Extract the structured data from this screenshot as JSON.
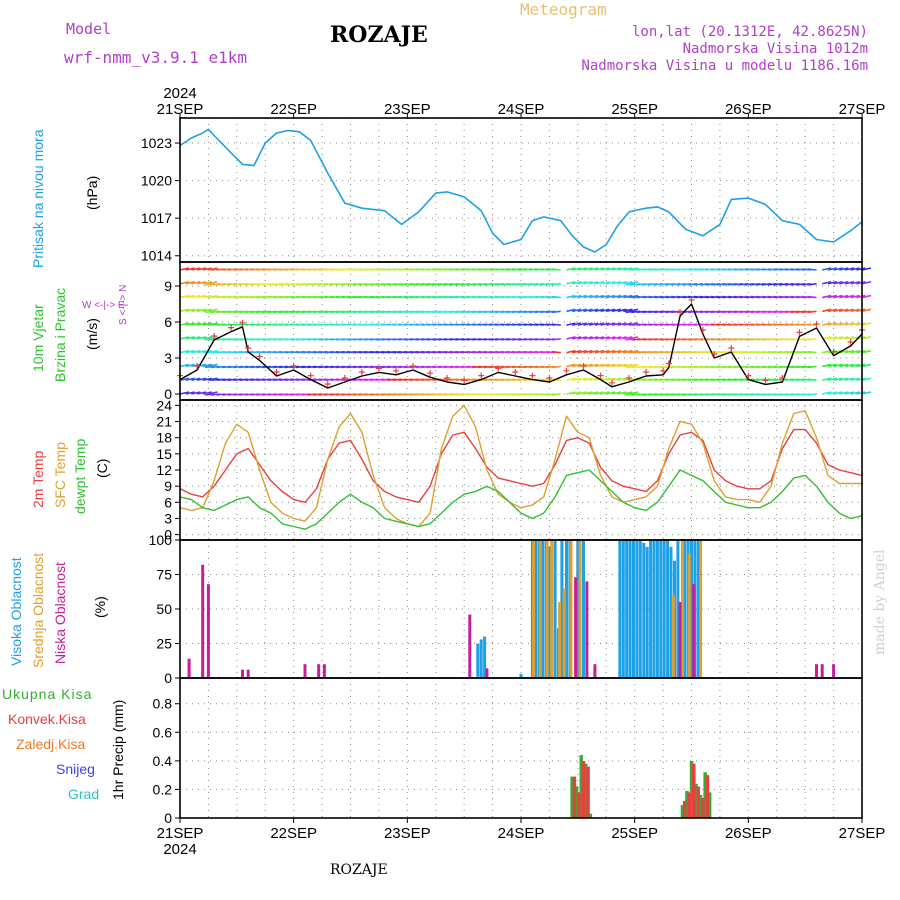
{
  "header": {
    "model_label": "Model",
    "model_name": "wrf-nmm_v3.9.1 e1km",
    "title": "ROZAJE",
    "meteogram_label": "Meteogram",
    "lonlat": "lon,lat (20.1312E, 42.8625N)",
    "altitude": "Nadmorska Visina 1012m",
    "model_altitude": "Nadmorska Visina u modelu 1186.16m"
  },
  "footer": {
    "station": "ROZAJE",
    "credit": "made by Angel"
  },
  "colors": {
    "pressure": "#1ea0e6",
    "temp2m": "#e84040",
    "sfc": "#e0a030",
    "dewpt": "#30c030",
    "high": "#1ea0e6",
    "mid": "#e0a030",
    "low": "#c0209a",
    "total": "#30b030",
    "conv": "#e84040",
    "frozen": "#f07820",
    "snow": "#4040e0",
    "hail": "#30c0c0"
  },
  "chart_data": [
    {
      "type": "line",
      "id": "pressure",
      "ylabel_parts": [
        "Pritisak na nivou mora",
        "(hPa)"
      ],
      "yticks": [
        1014,
        1017,
        1020,
        1023
      ],
      "ylim": [
        1013.5,
        1025
      ],
      "x_day": [
        0,
        0.1,
        0.2,
        0.25,
        0.3,
        0.45,
        0.55,
        0.65,
        0.75,
        0.85,
        0.95,
        1.05,
        1.15,
        1.3,
        1.45,
        1.6,
        1.8,
        1.95,
        2.1,
        2.25,
        2.35,
        2.5,
        2.65,
        2.75,
        2.85,
        3.0,
        3.1,
        3.2,
        3.35,
        3.45,
        3.55,
        3.65,
        3.75,
        3.85,
        3.95,
        4.1,
        4.2,
        4.3,
        4.45,
        4.6,
        4.75,
        4.85,
        5.0,
        5.15,
        5.3,
        5.45,
        5.6,
        5.75,
        5.9,
        6.0
      ],
      "values": [
        1022.8,
        1023.4,
        1023.8,
        1024.1,
        1023.6,
        1022.2,
        1021.3,
        1021.2,
        1023.0,
        1023.8,
        1024.0,
        1023.9,
        1023.2,
        1020.6,
        1018.2,
        1017.8,
        1017.6,
        1016.5,
        1017.5,
        1019.0,
        1019.1,
        1018.7,
        1017.6,
        1015.8,
        1014.9,
        1015.3,
        1016.8,
        1017.1,
        1016.8,
        1015.6,
        1014.7,
        1014.3,
        1014.9,
        1016.4,
        1017.5,
        1017.8,
        1017.9,
        1017.5,
        1016.1,
        1015.6,
        1016.5,
        1018.5,
        1018.6,
        1018.1,
        1016.8,
        1016.5,
        1015.3,
        1015.1,
        1016.0,
        1016.7
      ],
      "color": "#1ea0e6"
    },
    {
      "type": "line",
      "id": "wind",
      "ylabel_parts": [
        "10m Vjetar",
        "Brzina i Pravac",
        "(m/s)"
      ],
      "yticks": [
        0,
        3,
        6,
        9
      ],
      "ylim": [
        -0.5,
        11
      ],
      "compass_label": "W  <-|->  E",
      "compass_vertical": "S <-|-> N",
      "x_day": [
        0,
        0.15,
        0.3,
        0.45,
        0.55,
        0.6,
        0.7,
        0.85,
        1.0,
        1.15,
        1.3,
        1.45,
        1.6,
        1.75,
        1.9,
        2.05,
        2.2,
        2.35,
        2.5,
        2.65,
        2.8,
        2.95,
        3.1,
        3.25,
        3.4,
        3.55,
        3.7,
        3.8,
        3.95,
        4.1,
        4.25,
        4.3,
        4.4,
        4.5,
        4.6,
        4.7,
        4.85,
        5.0,
        5.15,
        5.3,
        5.45,
        5.6,
        5.75,
        5.9,
        6.0
      ],
      "values": [
        1.2,
        2.0,
        4.5,
        5.2,
        5.6,
        3.5,
        2.8,
        1.5,
        2.0,
        1.2,
        0.5,
        1.0,
        1.5,
        1.8,
        1.6,
        2.0,
        1.4,
        1.0,
        0.8,
        1.2,
        1.8,
        1.5,
        1.2,
        1.0,
        1.6,
        2.0,
        1.2,
        0.6,
        1.0,
        1.5,
        1.6,
        2.2,
        6.5,
        7.5,
        5.0,
        3.0,
        3.5,
        1.2,
        0.8,
        1.0,
        4.8,
        5.5,
        3.2,
        4.0,
        5.0
      ],
      "color": "#000000"
    },
    {
      "type": "line",
      "id": "temperature",
      "ylabel_parts": [
        "2m Temp",
        "SFC Temp",
        "dewpt Temp",
        "(C)"
      ],
      "yticks": [
        0,
        3,
        6,
        9,
        12,
        15,
        18,
        21,
        24
      ],
      "ylim": [
        -1,
        25
      ],
      "x_day": [
        0,
        0.1,
        0.2,
        0.3,
        0.4,
        0.5,
        0.6,
        0.7,
        0.8,
        0.9,
        1.0,
        1.1,
        1.2,
        1.3,
        1.4,
        1.5,
        1.6,
        1.7,
        1.8,
        1.9,
        2.0,
        2.1,
        2.2,
        2.3,
        2.4,
        2.5,
        2.6,
        2.7,
        2.8,
        2.9,
        3.0,
        3.1,
        3.2,
        3.3,
        3.4,
        3.5,
        3.6,
        3.7,
        3.8,
        3.9,
        4.0,
        4.1,
        4.2,
        4.3,
        4.4,
        4.5,
        4.6,
        4.7,
        4.8,
        4.9,
        5.0,
        5.1,
        5.2,
        5.3,
        5.4,
        5.5,
        5.6,
        5.7,
        5.8,
        5.9,
        6.0
      ],
      "series": [
        {
          "name": "2m Temp",
          "color": "#e84040",
          "values": [
            8.5,
            7.5,
            7.0,
            9.0,
            12.0,
            15.0,
            16.0,
            13.0,
            10.0,
            8.0,
            6.5,
            6.0,
            8.5,
            14.0,
            17.0,
            17.5,
            14.0,
            10.0,
            8.0,
            7.0,
            6.5,
            6.0,
            9.0,
            15.0,
            18.5,
            19.0,
            16.0,
            12.5,
            10.5,
            10.0,
            9.5,
            9.0,
            9.5,
            13.0,
            17.5,
            18.0,
            17.0,
            12.5,
            10.0,
            9.0,
            8.5,
            8.0,
            10.0,
            15.0,
            18.5,
            19.0,
            17.5,
            12.0,
            10.0,
            9.0,
            8.5,
            8.5,
            10.0,
            16.0,
            19.5,
            19.5,
            17.0,
            13.0,
            12.0,
            11.5,
            11.0
          ]
        },
        {
          "name": "SFC Temp",
          "color": "#e0a030",
          "values": [
            5.0,
            4.5,
            5.0,
            10.0,
            17.0,
            20.5,
            19.0,
            12.0,
            6.0,
            4.0,
            3.0,
            2.5,
            5.0,
            14.0,
            20.0,
            22.5,
            19.0,
            11.0,
            5.0,
            3.0,
            2.0,
            1.5,
            4.0,
            16.0,
            22.0,
            24.0,
            20.0,
            12.0,
            7.5,
            6.0,
            5.0,
            5.5,
            7.0,
            14.0,
            22.0,
            19.0,
            18.0,
            11.0,
            7.0,
            6.0,
            6.5,
            7.0,
            9.0,
            16.0,
            21.0,
            20.5,
            17.0,
            10.0,
            7.0,
            6.5,
            6.5,
            6.0,
            9.0,
            17.0,
            22.5,
            23.0,
            18.0,
            11.0,
            9.5,
            9.5,
            9.5
          ]
        },
        {
          "name": "dewpt Temp",
          "color": "#30c030",
          "values": [
            7.0,
            6.5,
            5.0,
            4.5,
            5.5,
            6.5,
            7.0,
            5.0,
            4.0,
            2.0,
            1.5,
            1.0,
            2.0,
            4.0,
            6.0,
            7.5,
            6.0,
            5.0,
            3.0,
            2.5,
            2.0,
            1.5,
            2.0,
            4.0,
            6.0,
            7.5,
            8.0,
            9.0,
            8.0,
            6.0,
            4.0,
            3.0,
            4.0,
            7.0,
            11.0,
            11.5,
            12.0,
            10.0,
            8.0,
            6.0,
            5.0,
            4.5,
            6.0,
            9.0,
            12.0,
            11.0,
            10.0,
            8.0,
            6.0,
            5.5,
            5.0,
            5.0,
            6.0,
            8.0,
            10.5,
            11.0,
            9.0,
            6.0,
            4.0,
            3.0,
            3.5
          ]
        }
      ]
    },
    {
      "type": "bar",
      "id": "clouds",
      "ylabel_parts": [
        "Visoka Oblacnost",
        "Srednja Oblacnost",
        "Niska Oblacnost",
        "(%)"
      ],
      "yticks": [
        0,
        25,
        50,
        75,
        100
      ],
      "ylim": [
        0,
        100
      ],
      "series": [
        {
          "name": "Visoka Oblacnost",
          "color": "#1ea0e6",
          "x_day": [
            2.62,
            2.65,
            2.68,
            3.0,
            3.1,
            3.13,
            3.16,
            3.19,
            3.22,
            3.25,
            3.3,
            3.33,
            3.36,
            3.4,
            3.43,
            3.5,
            3.55,
            3.87,
            3.9,
            3.93,
            3.96,
            3.99,
            4.02,
            4.05,
            4.08,
            4.11,
            4.14,
            4.17,
            4.2,
            4.23,
            4.26,
            4.29,
            4.32,
            4.35,
            4.38,
            4.44,
            4.47,
            4.5,
            4.53,
            4.56
          ],
          "values": [
            25,
            28,
            30,
            3,
            100,
            100,
            100,
            100,
            100,
            95,
            100,
            36,
            100,
            100,
            100,
            100,
            100,
            100,
            100,
            100,
            100,
            100,
            100,
            100,
            98,
            95,
            100,
            100,
            100,
            100,
            100,
            100,
            95,
            85,
            100,
            100,
            100,
            100,
            100,
            100
          ]
        },
        {
          "name": "Srednja Oblacnost",
          "color": "#e0a030",
          "x_day": [
            3.11,
            3.17,
            3.23,
            3.27,
            3.34,
            3.38,
            3.44,
            3.52,
            4.34,
            4.42,
            4.48,
            4.58
          ],
          "values": [
            100,
            100,
            100,
            100,
            55,
            65,
            100,
            100,
            60,
            100,
            90,
            100
          ]
        },
        {
          "name": "Niska Oblacnost",
          "color": "#c0209a",
          "x_day": [
            0.08,
            0.2,
            0.25,
            0.55,
            0.6,
            1.1,
            1.22,
            1.27,
            2.55,
            2.7,
            3.48,
            3.58,
            3.65,
            4.4,
            4.52,
            5.6,
            5.65,
            5.75
          ],
          "values": [
            14,
            82,
            68,
            6,
            6,
            10,
            10,
            10,
            46,
            7,
            73,
            70,
            10,
            55,
            68,
            10,
            10,
            10
          ]
        }
      ]
    },
    {
      "type": "bar",
      "id": "precip",
      "ylabel_parts": [
        "1hr Precip (mm)"
      ],
      "legend": [
        "Ukupna Kisa",
        "Konvek.Kisa",
        "Zaledj.Kisa",
        "Snijeg",
        "Grad"
      ],
      "yticks": [
        0,
        0.2,
        0.4,
        0.6,
        0.8
      ],
      "ylim": [
        0,
        0.98
      ],
      "series": [
        {
          "name": "Ukupna Kisa",
          "color": "#30b030",
          "x_day": [
            3.45,
            3.49,
            3.53,
            3.57,
            3.61,
            4.42,
            4.46,
            4.5,
            4.54,
            4.58,
            4.62,
            4.66
          ],
          "values": [
            0.29,
            0.22,
            0.44,
            0.38,
            0.03,
            0.09,
            0.19,
            0.4,
            0.24,
            0.16,
            0.32,
            0.18
          ]
        },
        {
          "name": "Konvek.Kisa",
          "color": "#e84040",
          "x_day": [
            3.47,
            3.51,
            3.55,
            3.59,
            4.44,
            4.48,
            4.52,
            4.56,
            4.6,
            4.64
          ],
          "values": [
            0.29,
            0.18,
            0.4,
            0.36,
            0.12,
            0.18,
            0.38,
            0.22,
            0.14,
            0.3
          ]
        }
      ]
    }
  ],
  "x_axis": {
    "year": "2024",
    "day_labels": [
      "21SEP",
      "22SEP",
      "23SEP",
      "24SEP",
      "25SEP",
      "26SEP",
      "27SEP"
    ]
  }
}
